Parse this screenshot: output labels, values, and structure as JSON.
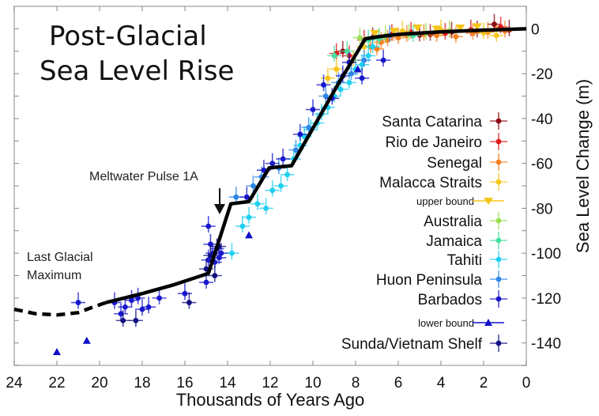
{
  "chart_data": {
    "type": "scatter",
    "title": [
      "Post-Glacial",
      "Sea Level Rise"
    ],
    "xlabel": "Thousands of Years Ago",
    "ylabel": "Sea Level Change (m)",
    "xlim": [
      24,
      0
    ],
    "ylim": [
      -150,
      10
    ],
    "x_ticks": [
      24,
      22,
      20,
      18,
      16,
      14,
      12,
      10,
      8,
      6,
      4,
      2,
      0
    ],
    "y_ticks": [
      0,
      -20,
      -40,
      -60,
      -80,
      -100,
      -120,
      -140
    ],
    "y_axis_side": "right",
    "grid": false,
    "legend_placement": "right",
    "annotations": [
      {
        "text": "Meltwater Pulse 1A",
        "x": 14.5,
        "y": -80,
        "arrow": true
      },
      {
        "text": [
          "Last Glacial",
          "Maximum"
        ],
        "x": 23,
        "y": -100,
        "arrow": false
      }
    ],
    "trend_line": {
      "name": "Sea level curve",
      "color": "#000000",
      "dashed_segment": [
        [
          24,
          -125
        ],
        [
          23,
          -127
        ],
        [
          22,
          -127.5
        ],
        [
          21,
          -126.5
        ],
        [
          20.3,
          -124
        ],
        [
          19.7,
          -122
        ]
      ],
      "solid_segment": [
        [
          19.7,
          -122
        ],
        [
          18,
          -118
        ],
        [
          16.5,
          -114
        ],
        [
          14.9,
          -109
        ],
        [
          13.85,
          -78
        ],
        [
          13.0,
          -77
        ],
        [
          12.05,
          -62
        ],
        [
          11.0,
          -61
        ],
        [
          8.9,
          -26
        ],
        [
          7.55,
          -4.5
        ],
        [
          7,
          -3.6
        ],
        [
          6,
          -2.5
        ],
        [
          4,
          -1.4
        ],
        [
          2,
          -0.6
        ],
        [
          0,
          0
        ]
      ]
    },
    "series": [
      {
        "name": "Santa Catarina",
        "color": "#8b0a12",
        "marker": "dot",
        "points": [
          [
            8.6,
            -10
          ],
          [
            7.2,
            -4
          ],
          [
            4.5,
            -2.5
          ],
          [
            3.5,
            -1.5
          ],
          [
            1.5,
            2
          ],
          [
            0.8,
            -0.5
          ],
          [
            2.3,
            -1
          ],
          [
            5.0,
            -2.8
          ]
        ]
      },
      {
        "name": "Rio de Janeiro",
        "color": "#e0191b",
        "marker": "dot",
        "points": [
          [
            8.9,
            -11
          ],
          [
            8.3,
            -12
          ],
          [
            7.6,
            -5
          ],
          [
            6.3,
            -2.5
          ],
          [
            3.8,
            -2
          ],
          [
            2.6,
            -0.5
          ],
          [
            1.2,
            0.8
          ],
          [
            5.4,
            -1.5
          ]
        ]
      },
      {
        "name": "Senegal",
        "color": "#f5801e",
        "marker": "dot",
        "points": [
          [
            7.3,
            -8
          ],
          [
            7.0,
            -9
          ],
          [
            6.8,
            -6
          ],
          [
            6.5,
            -5
          ],
          [
            6.0,
            -4
          ],
          [
            5.6,
            -3
          ],
          [
            4.8,
            -2.5
          ],
          [
            4.2,
            -3
          ],
          [
            3.3,
            -3.5
          ],
          [
            2.5,
            -2
          ],
          [
            1.8,
            -1.5
          ],
          [
            1.0,
            -1
          ]
        ]
      },
      {
        "name": "Malacca Straits",
        "color": "#f5c518",
        "marker": "dot",
        "points": [
          [
            9.3,
            -22
          ],
          [
            8.9,
            -18
          ],
          [
            8.1,
            -14
          ],
          [
            7.6,
            -8
          ],
          [
            6.9,
            -4
          ],
          [
            5.8,
            -1
          ],
          [
            4.0,
            -0.5
          ],
          [
            2.0,
            -1.8
          ],
          [
            1.4,
            -3
          ]
        ]
      },
      {
        "name": "upper bound",
        "color": "#f5c518",
        "marker": "triangle-down",
        "points": [
          [
            7.1,
            -2
          ],
          [
            6.2,
            -1
          ],
          [
            5.1,
            0.5
          ],
          [
            4.2,
            0
          ],
          [
            3.1,
            0.5
          ],
          [
            2.3,
            1
          ]
        ]
      },
      {
        "name": "Australia",
        "color": "#9be052",
        "marker": "dot",
        "points": [
          [
            7.8,
            -4
          ],
          [
            6.6,
            -3
          ],
          [
            5.5,
            -2.5
          ],
          [
            4.7,
            -2
          ],
          [
            3.6,
            -1
          ]
        ]
      },
      {
        "name": "Jamaica",
        "color": "#45e0a0",
        "marker": "dot",
        "points": [
          [
            9.0,
            -12
          ],
          [
            8.4,
            -10
          ],
          [
            7.4,
            -5
          ],
          [
            6.9,
            -4.5
          ],
          [
            5.3,
            -3
          ]
        ]
      },
      {
        "name": "Tahiti",
        "color": "#20d0f0",
        "marker": "dot",
        "points": [
          [
            13.8,
            -100
          ],
          [
            13.3,
            -88
          ],
          [
            13.0,
            -84
          ],
          [
            12.6,
            -78
          ],
          [
            12.2,
            -80
          ],
          [
            11.9,
            -72
          ],
          [
            11.5,
            -70
          ],
          [
            11.2,
            -65
          ],
          [
            10.9,
            -58
          ],
          [
            10.6,
            -52
          ],
          [
            10.4,
            -48
          ],
          [
            10.1,
            -45
          ],
          [
            9.8,
            -42
          ],
          [
            9.6,
            -38
          ],
          [
            9.3,
            -35
          ],
          [
            9.0,
            -30
          ],
          [
            8.7,
            -27
          ],
          [
            8.3,
            -24
          ],
          [
            8.0,
            -18
          ],
          [
            7.7,
            -16
          ],
          [
            7.4,
            -12
          ],
          [
            7.2,
            -8
          ]
        ]
      },
      {
        "name": "Huon Peninsula",
        "color": "#2d88e8",
        "marker": "dot",
        "points": [
          [
            13.6,
            -75
          ],
          [
            12.8,
            -70
          ],
          [
            12.4,
            -66
          ],
          [
            11.6,
            -62
          ],
          [
            10.8,
            -54
          ],
          [
            10.2,
            -44
          ],
          [
            9.4,
            -30
          ],
          [
            8.8,
            -24
          ],
          [
            8.2,
            -20
          ],
          [
            7.6,
            -14
          ],
          [
            6.4,
            -3
          ]
        ]
      },
      {
        "name": "Barbados",
        "color": "#1818cc",
        "marker": "dot",
        "points": [
          [
            21.0,
            -122
          ],
          [
            19.3,
            -122
          ],
          [
            19.0,
            -127
          ],
          [
            18.8,
            -124
          ],
          [
            18.5,
            -121
          ],
          [
            18.2,
            -120
          ],
          [
            18.0,
            -125
          ],
          [
            17.7,
            -124
          ],
          [
            17.2,
            -120
          ],
          [
            16.0,
            -118
          ],
          [
            15.0,
            -113
          ],
          [
            14.9,
            -103
          ],
          [
            14.8,
            -96
          ],
          [
            14.7,
            -100
          ],
          [
            14.6,
            -104
          ],
          [
            14.5,
            -98
          ],
          [
            14.4,
            -102
          ],
          [
            14.3,
            -100
          ],
          [
            14.9,
            -88
          ],
          [
            13.1,
            -75
          ],
          [
            12.3,
            -63
          ],
          [
            11.9,
            -60
          ],
          [
            11.4,
            -58
          ],
          [
            10.6,
            -47
          ],
          [
            10.0,
            -36
          ],
          [
            9.5,
            -25
          ],
          [
            9.1,
            -31
          ],
          [
            8.6,
            -21
          ],
          [
            8.3,
            -15
          ],
          [
            6.7,
            -14
          ],
          [
            7.7,
            -22
          ]
        ]
      },
      {
        "name": "lower bound",
        "color": "#1010c8",
        "marker": "triangle-up",
        "points": [
          [
            22.0,
            -144
          ],
          [
            20.6,
            -139
          ],
          [
            13.0,
            -92
          ],
          [
            7.9,
            -18
          ]
        ]
      },
      {
        "name": "Sunda/Vietnam Shelf",
        "color": "#101080",
        "marker": "dot",
        "points": [
          [
            18.9,
            -130
          ],
          [
            18.3,
            -130
          ],
          [
            15.8,
            -122
          ],
          [
            15.0,
            -107
          ],
          [
            14.8,
            -101
          ],
          [
            14.6,
            -110
          ],
          [
            14.4,
            -97
          ]
        ]
      }
    ]
  }
}
